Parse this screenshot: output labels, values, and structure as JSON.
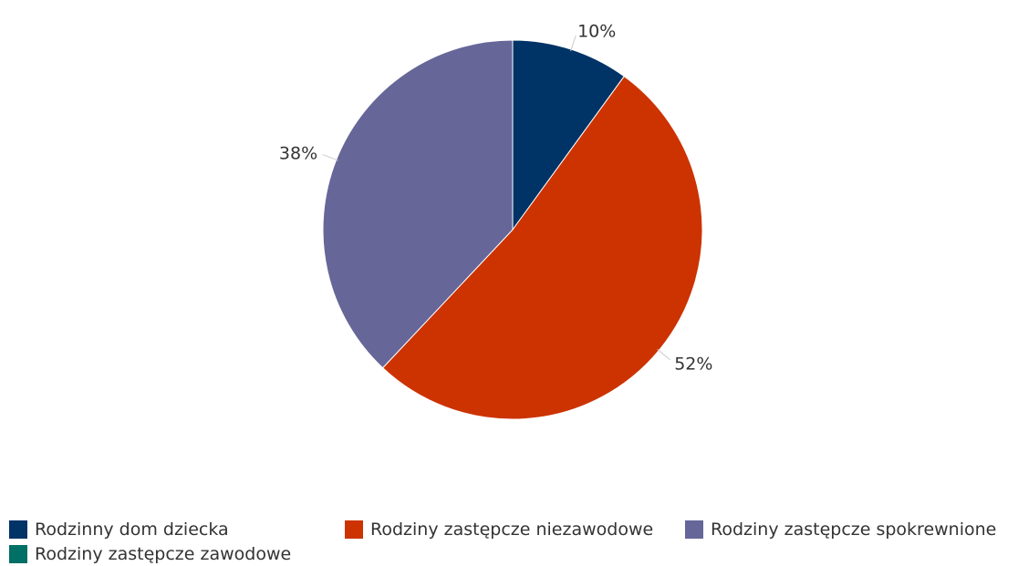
{
  "chart_data": {
    "type": "pie",
    "slices": [
      {
        "label": "Rodzinny dom dziecka",
        "value": 10,
        "value_label": "10%",
        "color": "#003366"
      },
      {
        "label": "Rodziny zastępcze niezawodowe",
        "value": 52,
        "value_label": "52%",
        "color": "#cc3300"
      },
      {
        "label": "Rodziny zastępcze spokrewnione",
        "value": 38,
        "value_label": "38%",
        "color": "#666699"
      },
      {
        "label": "Rodziny zastępcze zawodowe",
        "value": 0,
        "value_label": "",
        "color": "#006f66"
      }
    ],
    "legend_position": "bottom"
  }
}
